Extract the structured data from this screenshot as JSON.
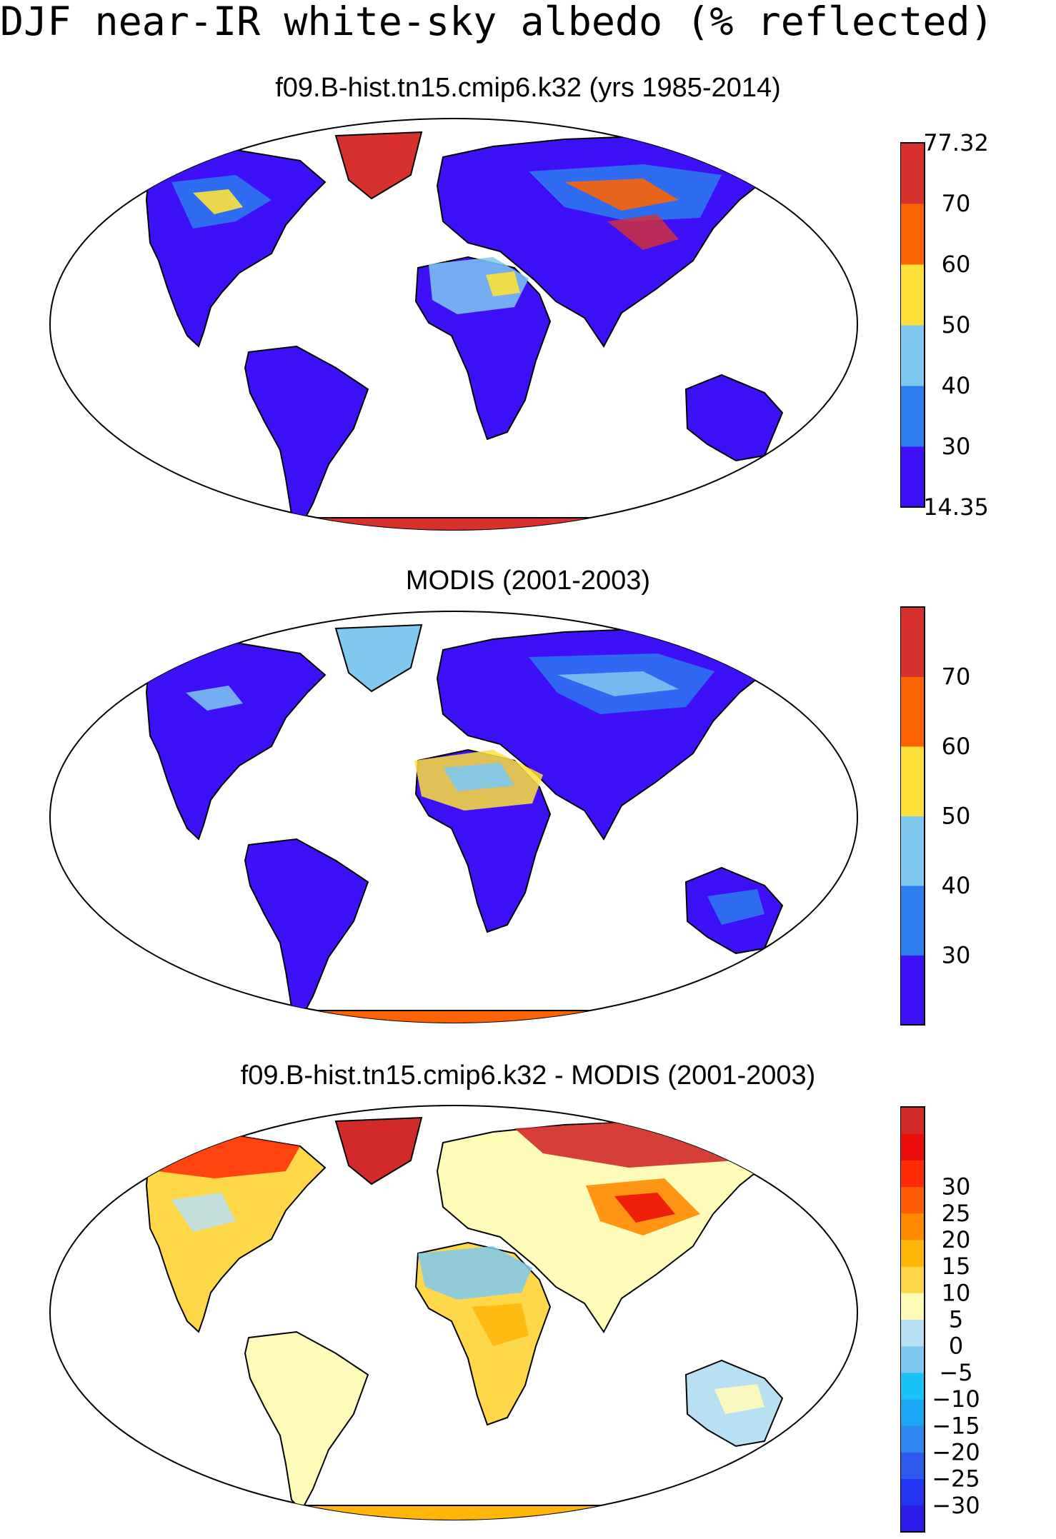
{
  "main_title": "DJF near-IR white-sky albedo (% reflected)",
  "panels": [
    {
      "title": "f09.B-hist.tn15.cmip6.k32 (yrs 1985-2014)",
      "colorbar": {
        "colors": [
          "#3d10f8",
          "#2c7ef0",
          "#7fc9f1",
          "#fde13a",
          "#fb6303",
          "#d7312e"
        ],
        "labels": [
          "14.35",
          "30",
          "40",
          "50",
          "60",
          "70",
          "77.32"
        ]
      }
    },
    {
      "title": "MODIS (2001-2003)",
      "colorbar": {
        "colors": [
          "#3d10f8",
          "#2c7ef0",
          "#7fc9f1",
          "#fde13a",
          "#fb6303",
          "#d7312e"
        ],
        "labels": [
          "",
          "30",
          "40",
          "50",
          "60",
          "70",
          ""
        ]
      }
    },
    {
      "title": "f09.B-hist.tn15.cmip6.k32 - MODIS (2001-2003)",
      "colorbar": {
        "colors": [
          "#2b1ce8",
          "#2534f2",
          "#2f5af0",
          "#2f86ef",
          "#1aa7f4",
          "#19c3f6",
          "#7fc9f1",
          "#b8e0f3",
          "#fffbb8",
          "#ffd84a",
          "#ffb608",
          "#ff8a00",
          "#ff5d03",
          "#ff2a06",
          "#ec0b0b",
          "#d22a2a"
        ],
        "labels": [
          "",
          "−30",
          "−25",
          "−20",
          "−15",
          "−10",
          "−5",
          "0",
          "5",
          "10",
          "15",
          "20",
          "25",
          "30",
          "",
          ""
        ]
      }
    }
  ]
}
